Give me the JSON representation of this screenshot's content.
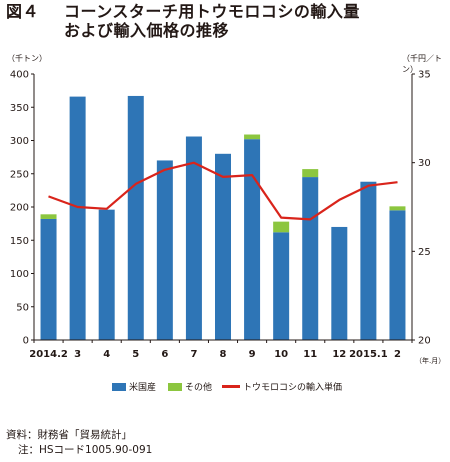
{
  "title": {
    "fig_no": "図４",
    "line1": "コーンスターチ用トウモロコシの輸入量",
    "line2": "および輸入価格の推移"
  },
  "colors": {
    "us": "#2e75b6",
    "other": "#8cc63f",
    "price": "#d9241b",
    "axis": "#231815"
  },
  "chart_data": {
    "type": "bar",
    "stacked": true,
    "categories": [
      "2014.2",
      "3",
      "4",
      "5",
      "6",
      "7",
      "8",
      "9",
      "10",
      "11",
      "12",
      "2015.1",
      "2"
    ],
    "y_left": {
      "unit": "（千トン）",
      "range": [
        0,
        400
      ],
      "ticks": [
        "0",
        "50",
        "100",
        "150",
        "200",
        "250",
        "300",
        "350",
        "400"
      ]
    },
    "y_right": {
      "unit": "（千円／トン）",
      "range": [
        20,
        35
      ],
      "ticks": [
        "20",
        "25",
        "30",
        "35"
      ]
    },
    "x_unit": "（年.月）",
    "grid": false,
    "series": [
      {
        "name": "米国産",
        "kind": "bar",
        "values": [
          182,
          366,
          196,
          367,
          270,
          306,
          280,
          302,
          162,
          245,
          170,
          238,
          195
        ]
      },
      {
        "name": "その他",
        "kind": "bar",
        "values": [
          7,
          0,
          0,
          0,
          0,
          0,
          0,
          7,
          16,
          12,
          0,
          0,
          6
        ]
      },
      {
        "name": "トウモロコシの輸入単価",
        "kind": "line",
        "axis": "right",
        "values": [
          28.1,
          27.5,
          27.4,
          28.8,
          29.6,
          30.0,
          29.2,
          29.3,
          26.9,
          26.8,
          27.9,
          28.7,
          28.9
        ]
      }
    ],
    "legend_position": "bottom"
  },
  "notes": {
    "source": "資料：財務省「貿易統計」",
    "note": "注：HSコード1005.90-091"
  }
}
